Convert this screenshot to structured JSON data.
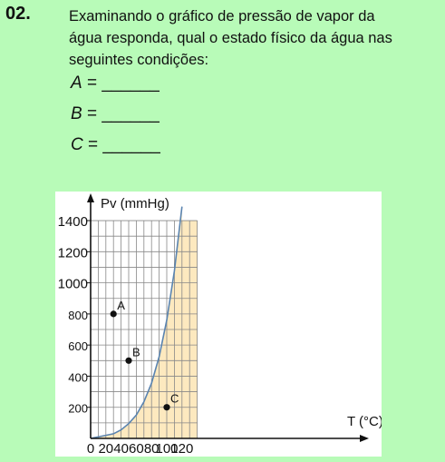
{
  "question": {
    "number": "02.",
    "lines": [
      "Examinando o gráfico de pressão de vapor da",
      "água responda, qual o estado físico da água nas",
      "seguintes condições:"
    ],
    "answers": [
      {
        "variable": "A",
        "sign": "=",
        "blank": "______"
      },
      {
        "variable": "B",
        "sign": "=",
        "blank": "______"
      },
      {
        "variable": "C",
        "sign": "=",
        "blank": "______"
      }
    ]
  },
  "colors": {
    "background": "#b8fbb8",
    "liquid_region": "#fde9bf",
    "grid": "#888888",
    "curve": "#5a84b0"
  },
  "chart_data": {
    "type": "line",
    "xlabel": "T (°C)",
    "ylabel": "Pv (mmHg)",
    "x_ticks": [
      0,
      20,
      40,
      60,
      80,
      100,
      120
    ],
    "y_ticks": [
      200,
      400,
      600,
      800,
      1000,
      1200,
      1400
    ],
    "xlim": [
      0,
      140
    ],
    "ylim": [
      0,
      1500
    ],
    "grid": true,
    "curve": {
      "x": [
        20,
        30,
        40,
        50,
        60,
        70,
        80,
        90,
        100,
        110,
        120
      ],
      "y": [
        20,
        30,
        55,
        95,
        150,
        235,
        355,
        525,
        760,
        1075,
        1490
      ]
    },
    "points": [
      {
        "label": "A",
        "x": 30,
        "y": 800
      },
      {
        "label": "B",
        "x": 50,
        "y": 500
      },
      {
        "label": "C",
        "x": 100,
        "y": 200
      }
    ]
  }
}
